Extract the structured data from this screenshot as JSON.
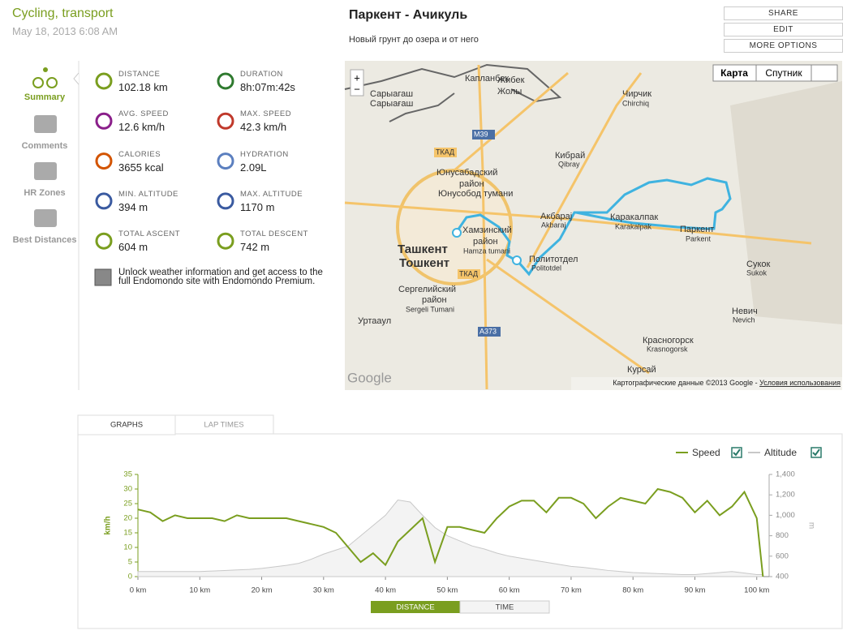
{
  "header": {
    "sport": "Cycling, transport",
    "date": "May 18, 2013 6:08 AM",
    "title": "Паркент - Ачикуль",
    "description": "Новый грунт до озера и от него"
  },
  "actions": [
    "SHARE",
    "EDIT",
    "MORE OPTIONS"
  ],
  "sidebar": [
    "Summary",
    "Comments",
    "HR Zones",
    "Best Distances"
  ],
  "stats": [
    {
      "label": "DISTANCE",
      "value": "102.18 km"
    },
    {
      "label": "DURATION",
      "value": "8h:07m:42s"
    },
    {
      "label": "AVG. SPEED",
      "value": "12.6 km/h"
    },
    {
      "label": "MAX. SPEED",
      "value": "42.3 km/h"
    },
    {
      "label": "CALORIES",
      "value": "3655 kcal"
    },
    {
      "label": "HYDRATION",
      "value": "2.09L"
    },
    {
      "label": "MIN. ALTITUDE",
      "value": "394 m"
    },
    {
      "label": "MAX. ALTITUDE",
      "value": "1170 m"
    },
    {
      "label": "TOTAL ASCENT",
      "value": "604 m"
    },
    {
      "label": "TOTAL DESCENT",
      "value": "742 m"
    }
  ],
  "promo": "Unlock weather information and get access to the full Endomondo site with Endomondo Premium.",
  "map": {
    "buttons": [
      "Карта",
      "Спутник"
    ],
    "zoom": [
      "+",
      "−"
    ],
    "logo": "Google",
    "attribution": "Картографические данные ©2013 Google - ",
    "terms": "Условия использования",
    "labels": [
      "Капланбек",
      "Жибек",
      "Жолы",
      "Сарыагаш",
      "Сарыағаш",
      "Чирчик",
      "Chirchiq",
      "M39",
      "ТКАД",
      "Кибрай",
      "Qibray",
      "Юнусабадский",
      "район",
      "Юнусобод тумани",
      "Акбарај",
      "Akbaraj",
      "Каракалпак",
      "Karakalpak",
      "Паркент",
      "Parkent",
      "Хамзинский",
      "район",
      "Hamza tumani",
      "Ташкент",
      "Тошкент",
      "Политотдел",
      "Politotdel",
      "ТКАД",
      "Сукок",
      "Sukok",
      "Сергелийский",
      "район",
      "Sergeli Tumani",
      "Уртаaул",
      "A373",
      "Невич",
      "Nevich",
      "Красногорск",
      "Krasnogorsk",
      "Курсай"
    ]
  },
  "tabs": [
    "GRAPHS",
    "LAP TIMES"
  ],
  "chart": {
    "type": "line",
    "y_label": "km/h",
    "y2_label": "m",
    "x": [
      0,
      2,
      4,
      6,
      8,
      10,
      12,
      14,
      16,
      18,
      20,
      22,
      24,
      26,
      28,
      30,
      32,
      34,
      36,
      38,
      40,
      42,
      44,
      46,
      48,
      50,
      52,
      54,
      56,
      58,
      60,
      62,
      64,
      66,
      68,
      70,
      72,
      74,
      76,
      78,
      80,
      82,
      84,
      86,
      88,
      90,
      92,
      94,
      96,
      98,
      100,
      101
    ],
    "series": [
      {
        "name": "Speed",
        "color": "#7a9e1f",
        "values": [
          23,
          22,
          19,
          21,
          20,
          20,
          20,
          19,
          21,
          20,
          20,
          20,
          20,
          19,
          18,
          17,
          15,
          10,
          5,
          8,
          4,
          12,
          16,
          20,
          5,
          17,
          17,
          16,
          15,
          20,
          24,
          26,
          26,
          22,
          27,
          27,
          25,
          20,
          24,
          27,
          26,
          25,
          30,
          29,
          27,
          22,
          26,
          21,
          24,
          29,
          20,
          0
        ]
      },
      {
        "name": "Altitude",
        "color": "#c8c8c8",
        "axis": "y2",
        "values": [
          450,
          450,
          450,
          450,
          450,
          450,
          455,
          460,
          465,
          470,
          480,
          495,
          510,
          530,
          570,
          620,
          660,
          700,
          800,
          900,
          1000,
          1150,
          1130,
          1000,
          880,
          800,
          750,
          700,
          670,
          630,
          600,
          580,
          560,
          540,
          520,
          500,
          490,
          475,
          460,
          450,
          440,
          435,
          430,
          425,
          420,
          420,
          430,
          440,
          450,
          435,
          420,
          420
        ]
      }
    ],
    "xlim": [
      0,
      102
    ],
    "ylim": [
      0,
      35
    ],
    "y2lim": [
      400,
      1400
    ],
    "xticks": [
      {
        "value": 0,
        "label": "0 km"
      },
      {
        "value": 10,
        "label": "10 km"
      },
      {
        "value": 20,
        "label": "20 km"
      },
      {
        "value": 30,
        "label": "30 km"
      },
      {
        "value": 40,
        "label": "40 km"
      },
      {
        "value": 50,
        "label": "50 km"
      },
      {
        "value": 60,
        "label": "60 km"
      },
      {
        "value": 70,
        "label": "70 km"
      },
      {
        "value": 80,
        "label": "80 km"
      },
      {
        "value": 90,
        "label": "90 km"
      },
      {
        "value": 100,
        "label": "100 km"
      }
    ],
    "yticks": [
      0,
      5,
      10,
      15,
      20,
      25,
      30,
      35
    ],
    "y2ticks": [
      400,
      600,
      800,
      {
        "value": 1000,
        "label": "1,000"
      },
      {
        "value": 1200,
        "label": "1,200"
      },
      {
        "value": 1400,
        "label": "1,400"
      }
    ]
  },
  "toggle": [
    "DISTANCE",
    "TIME"
  ]
}
